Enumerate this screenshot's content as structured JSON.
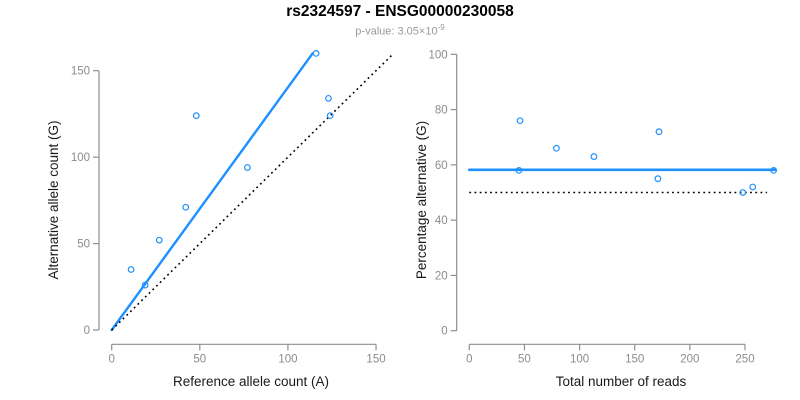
{
  "title": "rs2324597 - ENSG00000230058",
  "subtitle": {
    "text": "p-value: 3.05×10",
    "exponent": "-9"
  },
  "colors": {
    "accent_blue": "#1E90FF",
    "axis_gray": "#8E8E8E",
    "tick_label_gray": "#8C8C8C",
    "axis_title_color": "#1A1A1A",
    "dotted_black": "#000000",
    "background": "#FFFFFF"
  },
  "chart_data": [
    {
      "type": "scatter",
      "name": "allele-counts-plot",
      "title": "",
      "xlabel": "Reference allele count (A)",
      "ylabel": "Alternative allele count (G)",
      "xlim": [
        0,
        150
      ],
      "ylim": [
        0,
        150
      ],
      "xticks": [
        0,
        50,
        100,
        150
      ],
      "yticks": [
        0,
        50,
        100,
        150
      ],
      "grid": false,
      "legend": "none",
      "point_color": "#1E90FF",
      "points": [
        [
          11,
          35
        ],
        [
          19,
          26
        ],
        [
          27,
          52
        ],
        [
          42,
          71
        ],
        [
          48,
          124
        ],
        [
          77,
          94
        ],
        [
          116,
          160
        ],
        [
          123,
          134
        ],
        [
          124,
          124
        ]
      ],
      "lines": [
        {
          "name": "fit-line",
          "style": "solid",
          "color": "#1E90FF",
          "width": 2.4,
          "from": [
            0,
            0
          ],
          "to": [
            114,
            160
          ]
        },
        {
          "name": "identity-line",
          "style": "dotted",
          "color": "#000000",
          "width": 1.6,
          "from": [
            0,
            0
          ],
          "to": [
            160,
            160
          ]
        }
      ]
    },
    {
      "type": "scatter",
      "name": "percentage-alternative-plot",
      "title": "",
      "xlabel": "Total number of reads",
      "ylabel": "Percentage alternative (G)",
      "xlim": [
        0,
        280
      ],
      "ylim": [
        0,
        100
      ],
      "xticks": [
        0,
        50,
        100,
        150,
        200,
        250
      ],
      "yticks": [
        0,
        20,
        40,
        60,
        80,
        100
      ],
      "grid": false,
      "legend": "none",
      "point_color": "#1E90FF",
      "points": [
        [
          46,
          76
        ],
        [
          45,
          58
        ],
        [
          79,
          66
        ],
        [
          113,
          63
        ],
        [
          172,
          72
        ],
        [
          171,
          55
        ],
        [
          276,
          58
        ],
        [
          257,
          52
        ],
        [
          248,
          50
        ]
      ],
      "lines": [
        {
          "name": "mean-percentage-line",
          "style": "solid",
          "color": "#1E90FF",
          "width": 2.6,
          "from": [
            0,
            58.2
          ],
          "to": [
            277,
            58.2
          ]
        },
        {
          "name": "expected-50-line",
          "style": "dotted",
          "color": "#000000",
          "width": 1.6,
          "from": [
            0,
            50
          ],
          "to": [
            270,
            50
          ]
        }
      ]
    }
  ]
}
